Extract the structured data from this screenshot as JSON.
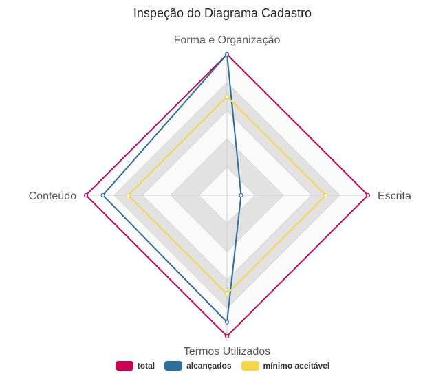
{
  "chart_data": {
    "type": "radar",
    "title": "Inspeção do Diagrama Cadastro",
    "axes": [
      "Forma e Organização",
      "Escrita",
      "Termos Utilizados",
      "Conteúdo"
    ],
    "scale": {
      "min": 0,
      "max": 5,
      "step": 1,
      "grid": "on",
      "band_colors": [
        "#fafafa",
        "#e2e2e2"
      ]
    },
    "series": [
      {
        "name": "total",
        "values": [
          5,
          5,
          5,
          5
        ],
        "color": "#cc0055"
      },
      {
        "name": "alcançados",
        "values": [
          5,
          0.5,
          4.5,
          4.4
        ],
        "color": "#2d6f9b"
      },
      {
        "name": "mínimo aceitável",
        "values": [
          3.5,
          3.5,
          3.5,
          3.5
        ],
        "color": "#f5d547"
      }
    ],
    "legend_position": "bottom"
  }
}
